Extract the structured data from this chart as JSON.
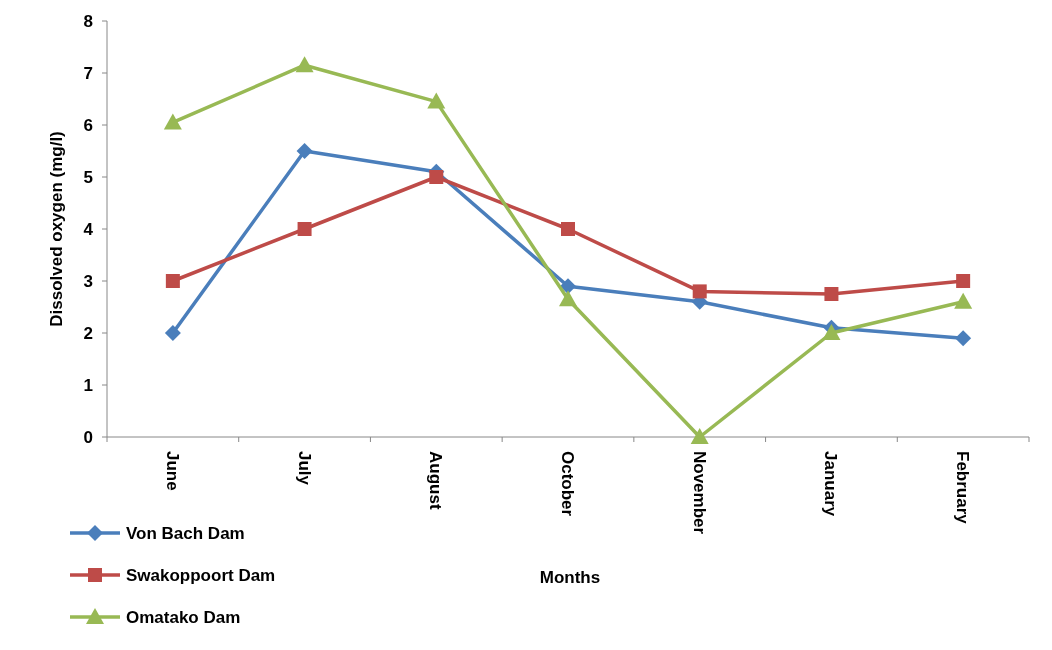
{
  "chart_data": {
    "type": "line",
    "xlabel": "Months",
    "ylabel": "Dissolved oxygen (mg/l)",
    "categories": [
      "June",
      "July",
      "August",
      "October",
      "November",
      "January",
      "February"
    ],
    "ylim": [
      0,
      8
    ],
    "yticks": [
      0,
      1,
      2,
      3,
      4,
      5,
      6,
      7,
      8
    ],
    "grid": false,
    "legend": "bottom left",
    "series": [
      {
        "name": "Von Bach Dam",
        "color": "#4a7ebb",
        "marker": "diamond",
        "values": [
          2,
          5.5,
          5.1,
          2.9,
          2.6,
          2.1,
          1.9
        ]
      },
      {
        "name": "Swakoppoort Dam",
        "color": "#be4b48",
        "marker": "square",
        "values": [
          3,
          4,
          5,
          4,
          2.8,
          2.75,
          3
        ]
      },
      {
        "name": "Omatako Dam",
        "color": "#98b954",
        "marker": "triangle",
        "values": [
          6.05,
          7.15,
          6.45,
          2.65,
          0,
          2,
          2.6
        ]
      }
    ]
  }
}
